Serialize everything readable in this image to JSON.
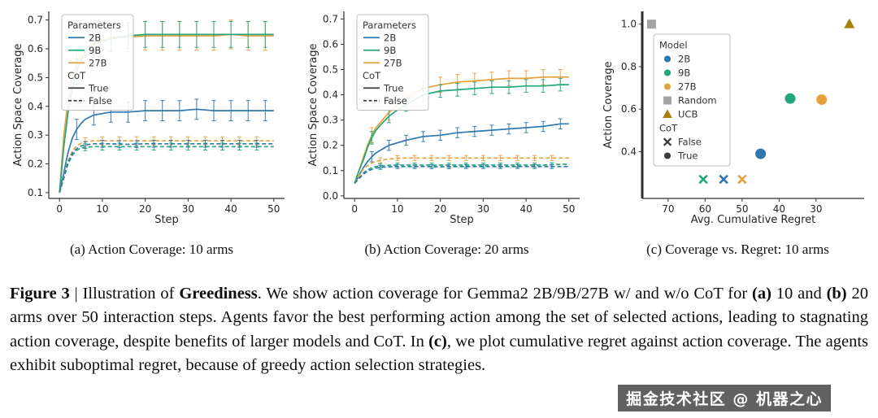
{
  "figure": {
    "subcaptions": [
      "(a) Action Coverage: 10 arms",
      "(b) Action Coverage: 20 arms",
      "(c) Coverage vs. Regret: 10 arms"
    ],
    "caption_segments": [
      {
        "text": "Figure 3",
        "bold": true
      },
      {
        "text": " | Illustration of ",
        "bold": false
      },
      {
        "text": "Greediness",
        "bold": true
      },
      {
        "text": ". We show action coverage for Gemma2 2B/9B/27B w/ and w/o CoT for ",
        "bold": false
      },
      {
        "text": "(a)",
        "bold": true
      },
      {
        "text": " 10 and ",
        "bold": false
      },
      {
        "text": "(b)",
        "bold": true
      },
      {
        "text": " 20 arms over 50 interaction steps. Agents favor the best performing action among the set of selected actions, leading to stagnating action coverage, despite benefits of larger models and CoT. In ",
        "bold": false
      },
      {
        "text": "(c)",
        "bold": true
      },
      {
        "text": ", we plot cumulative regret against action coverage. The agents exhibit suboptimal regret, because of greedy action selection strategies.",
        "bold": false
      }
    ],
    "watermark": "掘金技术社区 @ 机器之心"
  },
  "colors": {
    "blue_2b": "#3079ae",
    "green_9b": "#23a67e",
    "orange_27b": "#e5a23c",
    "random_gray": "#a3a3a3",
    "ucb_gold": "#a8800e",
    "cot_black": "#3c3c3c"
  },
  "chart_data": [
    {
      "id": "a",
      "type": "line",
      "title": "Action Coverage: 10 arms",
      "xlabel": "Step",
      "ylabel": "Action Space Coverage",
      "xlim": [
        -2.5,
        52.5
      ],
      "ylim": [
        0.08,
        0.73
      ],
      "xticks": [
        0,
        10,
        20,
        30,
        40,
        50
      ],
      "yticks": [
        0.1,
        0.2,
        0.3,
        0.4,
        0.5,
        0.6,
        0.7
      ],
      "x": [
        0,
        1,
        2,
        3,
        4,
        5,
        6,
        8,
        10,
        12,
        16,
        20,
        24,
        28,
        32,
        36,
        40,
        44,
        48,
        50
      ],
      "series": [
        {
          "name": "27B-CoT-True",
          "color": "#e5a23c",
          "dashed": false,
          "err": 0.05,
          "err_steps": [
            4,
            8,
            12,
            16,
            20,
            24,
            28,
            32,
            36,
            40,
            44,
            48
          ],
          "y": [
            0.1,
            0.3,
            0.42,
            0.5,
            0.55,
            0.58,
            0.6,
            0.62,
            0.63,
            0.64,
            0.64,
            0.645,
            0.645,
            0.645,
            0.645,
            0.645,
            0.65,
            0.645,
            0.645,
            0.645
          ]
        },
        {
          "name": "9B-CoT-True",
          "color": "#23a67e",
          "dashed": false,
          "err": 0.045,
          "err_steps": [
            4,
            8,
            12,
            16,
            20,
            24,
            28,
            32,
            36,
            40,
            44,
            48
          ],
          "y": [
            0.1,
            0.26,
            0.38,
            0.46,
            0.52,
            0.56,
            0.59,
            0.615,
            0.625,
            0.635,
            0.645,
            0.65,
            0.65,
            0.65,
            0.65,
            0.65,
            0.65,
            0.65,
            0.65,
            0.65
          ]
        },
        {
          "name": "2B-CoT-True",
          "color": "#3079ae",
          "dashed": false,
          "err": 0.035,
          "err_steps": [
            4,
            8,
            12,
            16,
            20,
            24,
            28,
            32,
            36,
            40,
            44,
            48
          ],
          "y": [
            0.1,
            0.17,
            0.24,
            0.29,
            0.32,
            0.34,
            0.355,
            0.37,
            0.375,
            0.38,
            0.38,
            0.385,
            0.385,
            0.385,
            0.39,
            0.385,
            0.385,
            0.385,
            0.385,
            0.385
          ]
        },
        {
          "name": "27B-CoT-False",
          "color": "#e5a23c",
          "dashed": true,
          "err": 0.014,
          "err_steps": [
            6,
            10,
            14,
            18,
            22,
            26,
            30,
            34,
            38,
            42,
            46
          ],
          "y": [
            0.1,
            0.16,
            0.21,
            0.245,
            0.262,
            0.272,
            0.277,
            0.28,
            0.28,
            0.28,
            0.28,
            0.28,
            0.28,
            0.28,
            0.28,
            0.28,
            0.28,
            0.28,
            0.28,
            0.28
          ]
        },
        {
          "name": "9B-CoT-False",
          "color": "#23a67e",
          "dashed": true,
          "err": 0.012,
          "err_steps": [
            6,
            10,
            14,
            18,
            22,
            26,
            30,
            34,
            38,
            42,
            46
          ],
          "y": [
            0.1,
            0.15,
            0.2,
            0.23,
            0.247,
            0.255,
            0.258,
            0.26,
            0.26,
            0.26,
            0.26,
            0.26,
            0.26,
            0.26,
            0.26,
            0.26,
            0.26,
            0.26,
            0.26,
            0.26
          ]
        },
        {
          "name": "2B-CoT-False",
          "color": "#3079ae",
          "dashed": true,
          "err": 0.012,
          "err_steps": [
            6,
            10,
            14,
            18,
            22,
            26,
            30,
            34,
            38,
            42,
            46
          ],
          "y": [
            0.1,
            0.155,
            0.205,
            0.237,
            0.253,
            0.262,
            0.266,
            0.27,
            0.27,
            0.27,
            0.268,
            0.27,
            0.27,
            0.27,
            0.27,
            0.27,
            0.27,
            0.27,
            0.27,
            0.27
          ]
        }
      ],
      "legend": {
        "rows": [
          {
            "label": "Parameters",
            "type": "title"
          },
          {
            "label": "2B",
            "type": "line",
            "color": "#3079ae"
          },
          {
            "label": "9B",
            "type": "line",
            "color": "#23a67e"
          },
          {
            "label": "27B",
            "type": "line",
            "color": "#e5a23c"
          },
          {
            "label": "CoT",
            "type": "title"
          },
          {
            "label": "True",
            "type": "line",
            "color": "#3c3c3c"
          },
          {
            "label": "False",
            "type": "line",
            "color": "#3c3c3c",
            "dash": true
          }
        ]
      }
    },
    {
      "id": "b",
      "type": "line",
      "title": "Action Coverage: 20 arms",
      "xlabel": "Step",
      "ylabel": "Action Space Coverage",
      "xlim": [
        -2.5,
        52.5
      ],
      "ylim": [
        -0.01,
        0.73
      ],
      "xticks": [
        0,
        10,
        20,
        30,
        40,
        50
      ],
      "yticks": [
        0.0,
        0.1,
        0.2,
        0.3,
        0.4,
        0.5,
        0.6,
        0.7
      ],
      "x": [
        0,
        1,
        2,
        3,
        4,
        5,
        6,
        8,
        10,
        12,
        16,
        20,
        24,
        28,
        32,
        36,
        40,
        44,
        48,
        50
      ],
      "series": [
        {
          "name": "27B-CoT-True",
          "color": "#e5a23c",
          "dashed": false,
          "err": 0.03,
          "err_steps": [
            4,
            8,
            12,
            16,
            20,
            24,
            28,
            32,
            36,
            40,
            44,
            48
          ],
          "y": [
            0.05,
            0.1,
            0.15,
            0.2,
            0.24,
            0.27,
            0.29,
            0.33,
            0.36,
            0.385,
            0.425,
            0.44,
            0.45,
            0.455,
            0.46,
            0.465,
            0.465,
            0.47,
            0.47,
            0.47
          ]
        },
        {
          "name": "9B-CoT-True",
          "color": "#23a67e",
          "dashed": false,
          "err": 0.025,
          "err_steps": [
            4,
            8,
            12,
            16,
            20,
            24,
            28,
            32,
            36,
            40,
            44,
            48
          ],
          "y": [
            0.05,
            0.1,
            0.14,
            0.19,
            0.23,
            0.26,
            0.28,
            0.315,
            0.34,
            0.36,
            0.4,
            0.415,
            0.42,
            0.425,
            0.43,
            0.43,
            0.435,
            0.435,
            0.44,
            0.44
          ]
        },
        {
          "name": "2B-CoT-True",
          "color": "#3079ae",
          "dashed": false,
          "err": 0.02,
          "err_steps": [
            4,
            8,
            12,
            16,
            20,
            24,
            28,
            32,
            36,
            40,
            44,
            48
          ],
          "y": [
            0.05,
            0.08,
            0.11,
            0.135,
            0.155,
            0.17,
            0.18,
            0.2,
            0.21,
            0.22,
            0.235,
            0.24,
            0.25,
            0.255,
            0.26,
            0.265,
            0.27,
            0.275,
            0.285,
            0.285
          ]
        },
        {
          "name": "27B-CoT-False",
          "color": "#e5a23c",
          "dashed": true,
          "err": 0.01,
          "err_steps": [
            6,
            10,
            14,
            18,
            22,
            26,
            30,
            34,
            38,
            42,
            46
          ],
          "y": [
            0.05,
            0.08,
            0.105,
            0.12,
            0.13,
            0.137,
            0.141,
            0.146,
            0.149,
            0.15,
            0.15,
            0.15,
            0.15,
            0.15,
            0.15,
            0.15,
            0.15,
            0.15,
            0.15,
            0.15
          ]
        },
        {
          "name": "9B-CoT-False",
          "color": "#23a67e",
          "dashed": true,
          "err": 0.008,
          "err_steps": [
            6,
            10,
            14,
            18,
            22,
            26,
            30,
            34,
            38,
            42,
            46
          ],
          "y": [
            0.05,
            0.07,
            0.09,
            0.103,
            0.111,
            0.116,
            0.119,
            0.121,
            0.122,
            0.122,
            0.122,
            0.122,
            0.122,
            0.122,
            0.122,
            0.122,
            0.122,
            0.122,
            0.125,
            0.125
          ]
        },
        {
          "name": "2B-CoT-False",
          "color": "#3079ae",
          "dashed": true,
          "err": 0.008,
          "err_steps": [
            6,
            10,
            14,
            18,
            22,
            26,
            30,
            34,
            38,
            42,
            46
          ],
          "y": [
            0.05,
            0.068,
            0.085,
            0.097,
            0.105,
            0.11,
            0.113,
            0.115,
            0.116,
            0.116,
            0.116,
            0.115,
            0.116,
            0.116,
            0.116,
            0.116,
            0.116,
            0.116,
            0.116,
            0.116
          ]
        }
      ],
      "legend": {
        "rows": [
          {
            "label": "Parameters",
            "type": "title"
          },
          {
            "label": "2B",
            "type": "line",
            "color": "#3079ae"
          },
          {
            "label": "9B",
            "type": "line",
            "color": "#23a67e"
          },
          {
            "label": "27B",
            "type": "line",
            "color": "#e5a23c"
          },
          {
            "label": "CoT",
            "type": "title"
          },
          {
            "label": "True",
            "type": "line",
            "color": "#3c3c3c"
          },
          {
            "label": "False",
            "type": "line",
            "color": "#3c3c3c",
            "dash": true
          }
        ]
      }
    },
    {
      "id": "c",
      "type": "scatter",
      "title": "Coverage vs. Regret: 10 arms",
      "xlabel": "Avg. Cumulative Regret",
      "ylabel": "Action Coverage",
      "xlim": [
        77,
        17
      ],
      "ylim": [
        0.18,
        1.06
      ],
      "xticks": [
        70,
        60,
        50,
        40,
        30
      ],
      "yticks": [
        0.4,
        0.6,
        0.8,
        1.0
      ],
      "points": [
        {
          "label": "Random",
          "marker": "square",
          "color": "#a3a3a3",
          "x": 74.5,
          "y": 1.0
        },
        {
          "label": "UCB",
          "marker": "triangle",
          "color": "#a8800e",
          "x": 21,
          "y": 1.0
        },
        {
          "label": "9B-CoT-False",
          "marker": "x",
          "color": "#23a67e",
          "x": 60.5,
          "y": 0.27
        },
        {
          "label": "2B-CoT-False",
          "marker": "x",
          "color": "#3079ae",
          "x": 55,
          "y": 0.27
        },
        {
          "label": "27B-CoT-False",
          "marker": "x",
          "color": "#e5a23c",
          "x": 50,
          "y": 0.27
        },
        {
          "label": "2B-CoT-True",
          "marker": "circle",
          "color": "#3079ae",
          "x": 45,
          "y": 0.39
        },
        {
          "label": "9B-CoT-True",
          "marker": "circle",
          "color": "#23a67e",
          "x": 37,
          "y": 0.65
        },
        {
          "label": "27B-CoT-True",
          "marker": "circle",
          "color": "#e5a23c",
          "x": 28.5,
          "y": 0.645
        }
      ],
      "legend": {
        "rows": [
          {
            "label": "Model",
            "type": "title"
          },
          {
            "label": "2B",
            "type": "marker",
            "marker": "dot",
            "color": "#3079ae"
          },
          {
            "label": "9B",
            "type": "marker",
            "marker": "dot",
            "color": "#23a67e"
          },
          {
            "label": "27B",
            "type": "marker",
            "marker": "dot",
            "color": "#e5a23c"
          },
          {
            "label": "Random",
            "type": "marker",
            "marker": "square",
            "color": "#a3a3a3"
          },
          {
            "label": "UCB",
            "type": "marker",
            "marker": "triangle",
            "color": "#a8800e"
          },
          {
            "label": "CoT",
            "type": "title"
          },
          {
            "label": "False",
            "type": "marker",
            "marker": "x",
            "color": "#3c3c3c"
          },
          {
            "label": "True",
            "type": "marker",
            "marker": "dot",
            "color": "#3c3c3c"
          }
        ]
      }
    }
  ]
}
